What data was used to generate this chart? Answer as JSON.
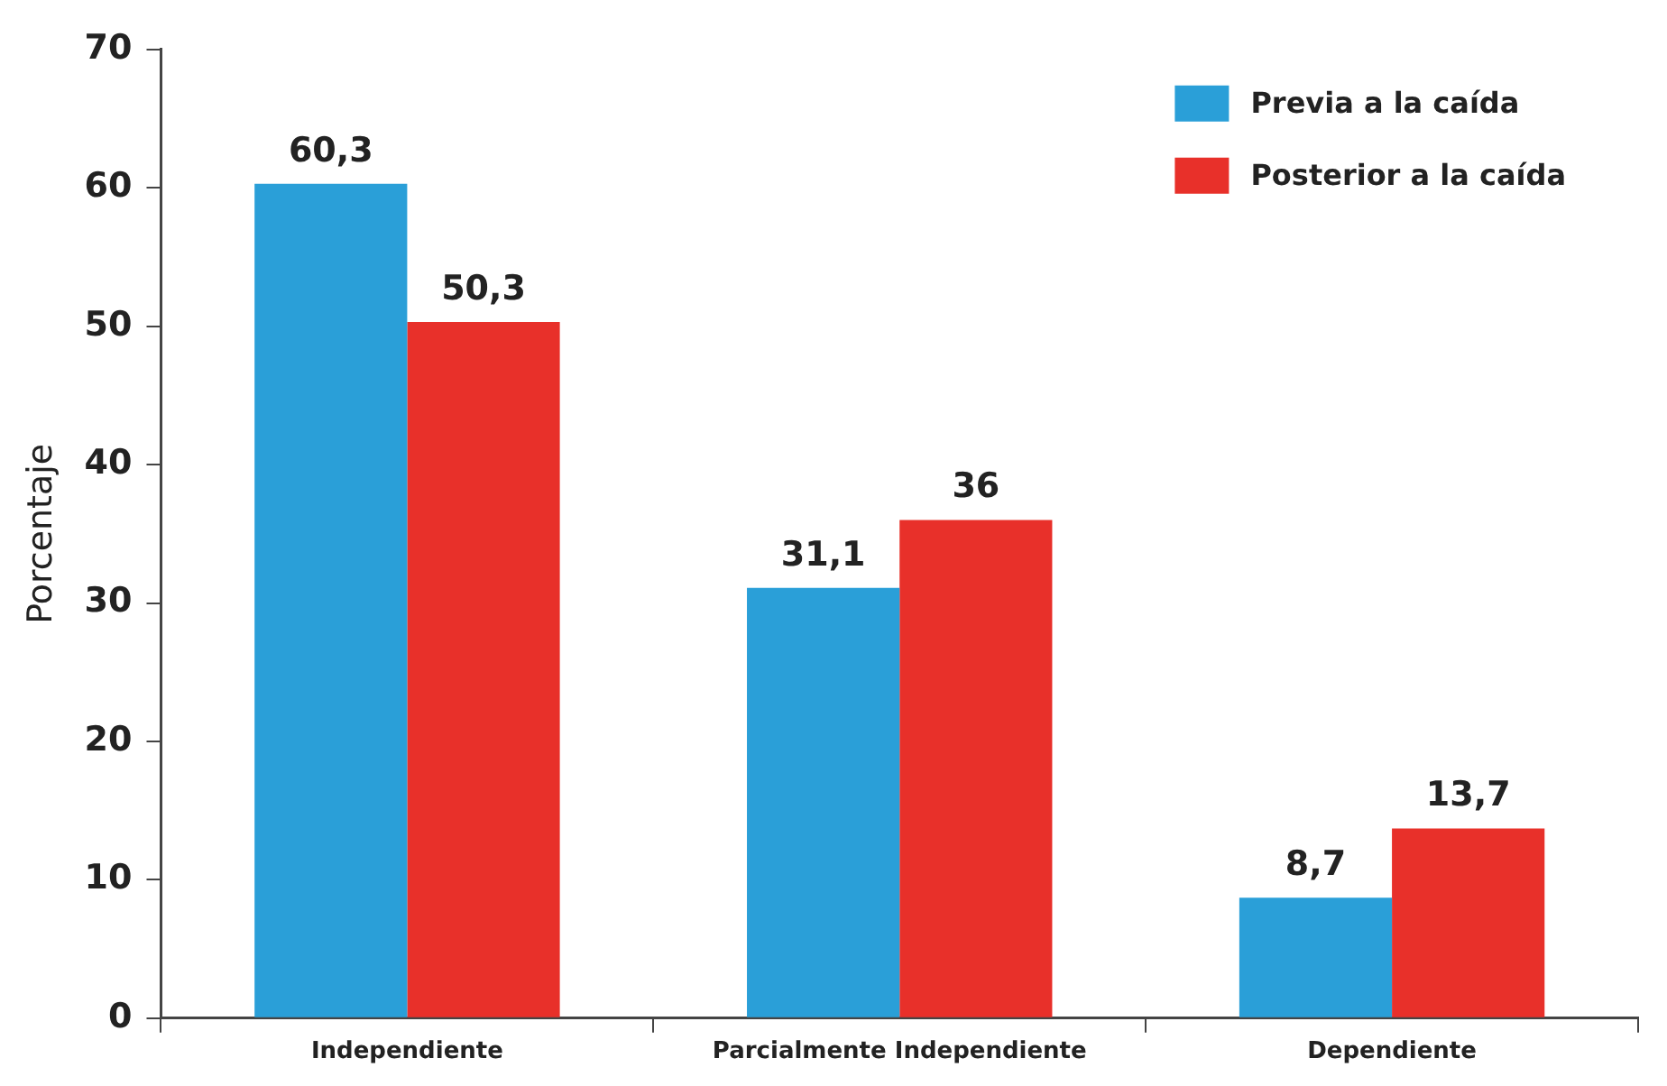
{
  "chart_data": {
    "type": "bar",
    "ylabel": "Porcentaje",
    "categories": [
      "Independiente",
      "Parcialmente Independiente",
      "Dependiente"
    ],
    "series": [
      {
        "name": "Previa a la caída",
        "color": "#2a9fd8",
        "values": [
          60.3,
          31.1,
          8.7
        ],
        "value_labels": [
          "60,3",
          "31,1",
          "8,7"
        ]
      },
      {
        "name": "Posterior a la caída",
        "color": "#e8302a",
        "values": [
          50.3,
          36,
          13.7
        ],
        "value_labels": [
          "50,3",
          "36",
          "13,7"
        ]
      }
    ],
    "ylim": [
      0,
      70
    ],
    "yticks": [
      0,
      10,
      20,
      30,
      40,
      50,
      60,
      70
    ],
    "grid": false,
    "legend": "top right"
  }
}
